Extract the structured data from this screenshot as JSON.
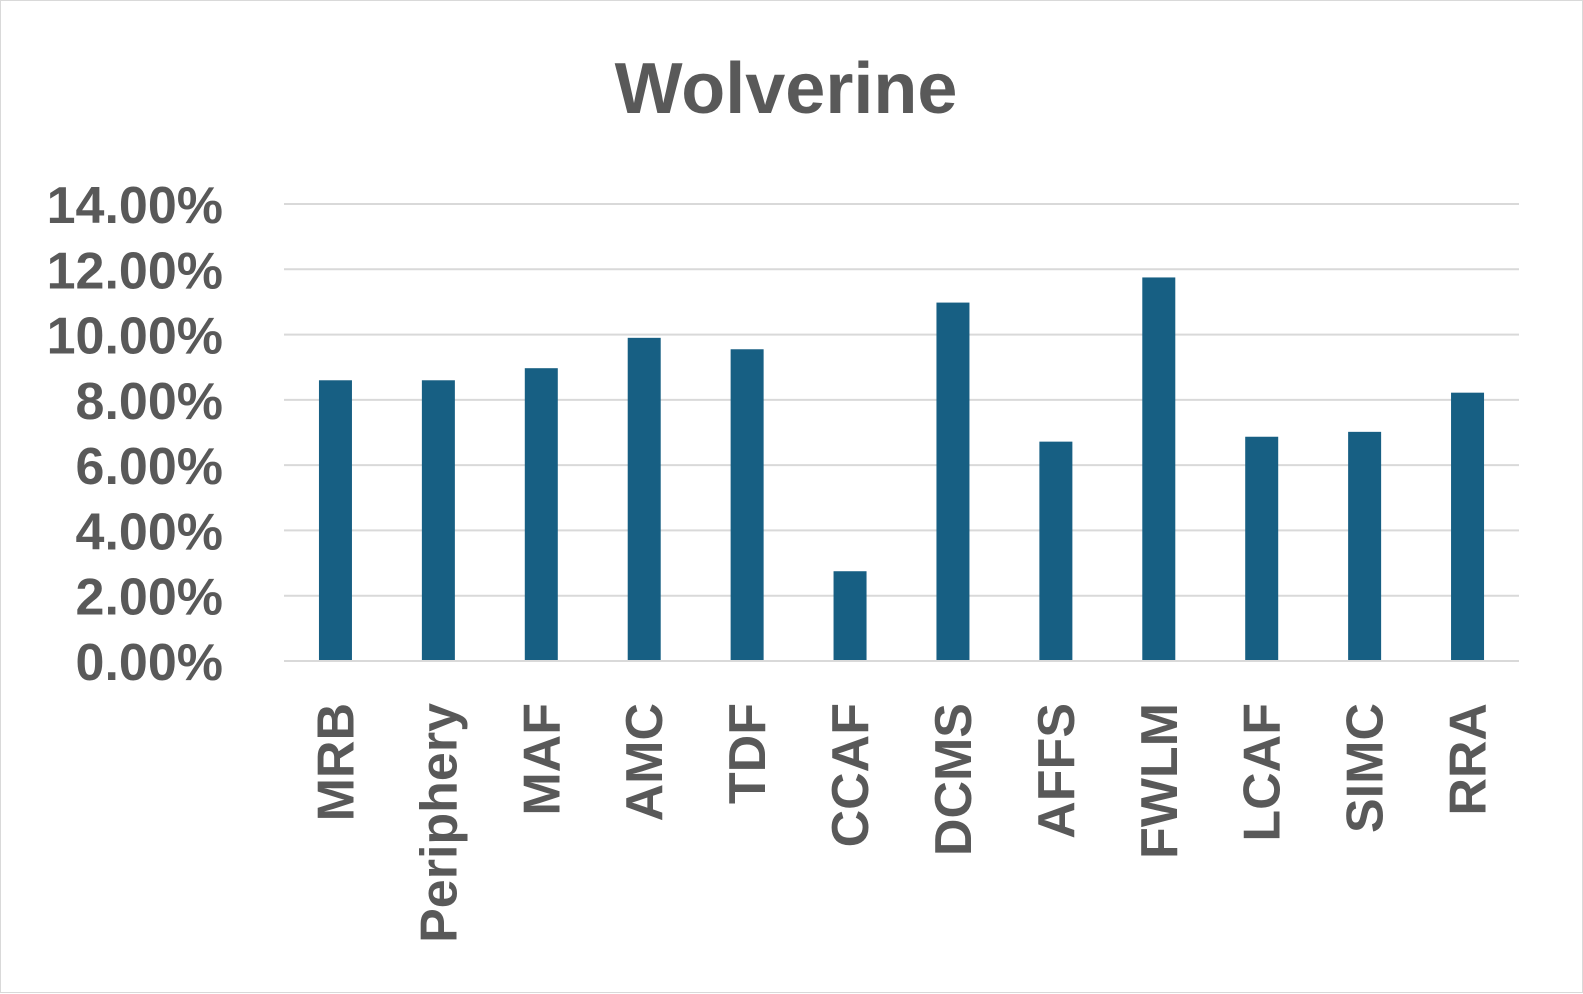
{
  "chart_data": {
    "type": "bar",
    "title": "Wolverine",
    "xlabel": "",
    "ylabel": "",
    "categories": [
      "MRB",
      "Periphery",
      "MAF",
      "AMC",
      "TDF",
      "CCAF",
      "DCMS",
      "AFFS",
      "FWLM",
      "LCAF",
      "SIMC",
      "RRA"
    ],
    "values": [
      0.086,
      0.086,
      0.0897,
      0.099,
      0.0955,
      0.0275,
      0.1098,
      0.0672,
      0.1175,
      0.0687,
      0.0702,
      0.0822
    ],
    "ylim": [
      0,
      0.14
    ],
    "yticks": [
      0,
      0.02,
      0.04,
      0.06,
      0.08,
      0.1,
      0.12,
      0.14
    ],
    "ytick_labels": [
      "0.00%",
      "2.00%",
      "4.00%",
      "6.00%",
      "8.00%",
      "10.00%",
      "12.00%",
      "14.00%"
    ],
    "grid": true,
    "legend": "none",
    "colors": {
      "bar": "#175f83",
      "grid": "#d9d9d9",
      "text": "#595959"
    }
  }
}
